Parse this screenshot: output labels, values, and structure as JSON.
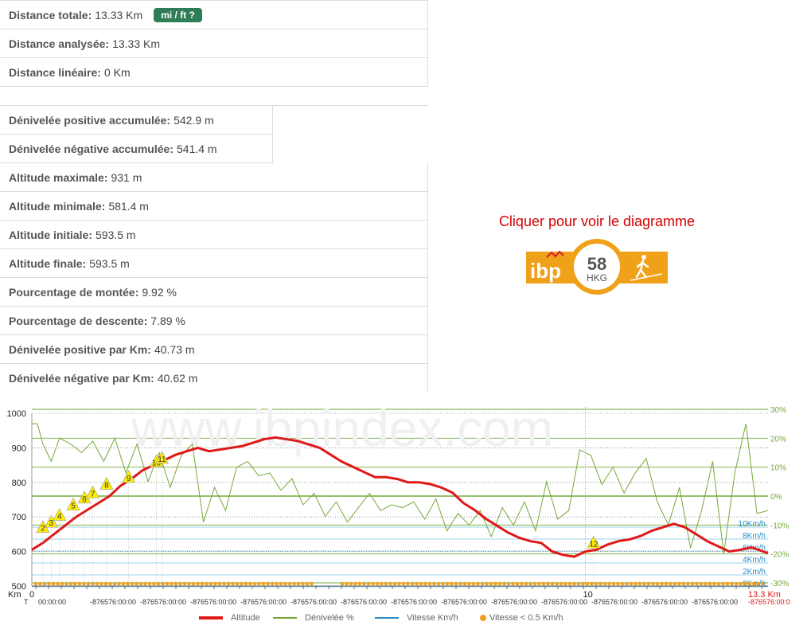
{
  "stats_top": [
    {
      "label": "Distance totale:",
      "value": "13.33 Km",
      "badge": "mi / ft ?"
    },
    {
      "label": "Distance analysée:",
      "value": "13.33 Km"
    },
    {
      "label": "Distance linéaire:",
      "value": "0 Km"
    }
  ],
  "stats_bottom": [
    {
      "label": "Dénivelée positive accumulée:",
      "value": "542.9 m"
    },
    {
      "label": "Dénivelée négative accumulée:",
      "value": "541.4 m"
    },
    {
      "label": "Altitude maximale:",
      "value": "931 m"
    },
    {
      "label": "Altitude minimale:",
      "value": "581.4 m"
    },
    {
      "label": "Altitude initiale:",
      "value": "593.5 m"
    },
    {
      "label": "Altitude finale:",
      "value": "593.5 m"
    },
    {
      "label": "Pourcentage de montée:",
      "value": "9.92 %"
    },
    {
      "label": "Pourcentage de descente:",
      "value": "7.89 %"
    },
    {
      "label": "Dénivelée positive par Km:",
      "value": "40.73 m"
    },
    {
      "label": "Dénivelée négative par Km:",
      "value": "40.62 m"
    }
  ],
  "ibp": {
    "link": "Cliquer pour voir le diagramme",
    "score": "58",
    "code": "HKG",
    "brand": "ibp"
  },
  "watermark": "www.ibpindex.com",
  "colors": {
    "altitude": "#e01818",
    "slope": "#76a83a",
    "speed": "#2a8cc8",
    "stop": "#f0a020",
    "badge": "#2f7d56"
  },
  "chart_data": {
    "type": "line",
    "xlabel": "Km",
    "xlim": [
      0,
      13.3
    ],
    "x_major_ticks": [
      {
        "x": 0,
        "label": "0"
      },
      {
        "x": 10,
        "label": "10"
      }
    ],
    "x_end_label": "13.3 Km",
    "time_start": "00:00:00",
    "time_label": "-876576:00:00",
    "time_end_label": "-876576:00:0",
    "time_marker": "T",
    "y_left": {
      "ylim": [
        500,
        1000
      ],
      "ticks": [
        "1000",
        "900",
        "800",
        "700",
        "600",
        "500"
      ]
    },
    "y_right_slope": {
      "ylim": [
        -30,
        30
      ],
      "ticks": [
        "30%",
        "20%",
        "10%",
        "0%",
        "-10%",
        "-20%",
        "-30%"
      ]
    },
    "speed_ticks": [
      "10Km/h",
      "8Km/h",
      "6Km/h",
      "4Km/h",
      "2Km/h",
      "0Km/h"
    ],
    "legend": [
      "Altitude",
      "Dénivelée %",
      "Vitesse Km/h",
      "Vitesse < 0.5 Km/h"
    ],
    "series": [
      {
        "name": "Altitude",
        "x": [
          0,
          0.2,
          0.4,
          0.6,
          0.8,
          1.0,
          1.2,
          1.4,
          1.6,
          1.8,
          2.0,
          2.2,
          2.4,
          2.6,
          2.8,
          3.0,
          3.2,
          3.4,
          3.6,
          3.8,
          4.0,
          4.2,
          4.4,
          4.6,
          4.8,
          5.0,
          5.2,
          5.4,
          5.6,
          5.8,
          6.0,
          6.2,
          6.4,
          6.6,
          6.8,
          7.0,
          7.2,
          7.4,
          7.6,
          7.8,
          8.0,
          8.2,
          8.4,
          8.6,
          8.8,
          9.0,
          9.2,
          9.4,
          9.6,
          9.8,
          10.0,
          10.2,
          10.4,
          10.6,
          10.8,
          11.0,
          11.2,
          11.4,
          11.6,
          11.8,
          12.0,
          12.2,
          12.4,
          12.6,
          12.8,
          13.0,
          13.3
        ],
        "values": [
          605,
          625,
          650,
          675,
          700,
          720,
          740,
          760,
          790,
          810,
          835,
          850,
          865,
          880,
          890,
          900,
          890,
          895,
          900,
          905,
          915,
          925,
          930,
          925,
          920,
          910,
          900,
          880,
          860,
          845,
          830,
          815,
          815,
          810,
          800,
          800,
          795,
          785,
          770,
          740,
          720,
          695,
          675,
          655,
          640,
          630,
          625,
          600,
          590,
          585,
          600,
          605,
          620,
          630,
          635,
          645,
          660,
          670,
          680,
          670,
          650,
          630,
          615,
          600,
          605,
          612,
          595
        ]
      },
      {
        "name": "Dénivelée %",
        "x": [
          0,
          0.1,
          0.2,
          0.35,
          0.5,
          0.7,
          0.9,
          1.1,
          1.3,
          1.5,
          1.7,
          1.9,
          2.1,
          2.3,
          2.5,
          2.7,
          2.9,
          3.1,
          3.3,
          3.5,
          3.7,
          3.9,
          4.1,
          4.3,
          4.5,
          4.7,
          4.9,
          5.1,
          5.3,
          5.5,
          5.7,
          5.9,
          6.1,
          6.3,
          6.5,
          6.7,
          6.9,
          7.1,
          7.3,
          7.5,
          7.7,
          7.9,
          8.1,
          8.3,
          8.5,
          8.7,
          8.9,
          9.1,
          9.3,
          9.5,
          9.7,
          9.9,
          10.1,
          10.3,
          10.5,
          10.7,
          10.9,
          11.1,
          11.3,
          11.5,
          11.7,
          11.9,
          12.1,
          12.3,
          12.5,
          12.7,
          12.9,
          13.1,
          13.3
        ],
        "values": [
          25,
          25,
          18,
          12,
          20,
          18,
          15,
          19,
          12,
          20,
          8,
          18,
          5,
          15,
          3,
          14,
          18,
          -9,
          3,
          -5,
          10,
          12,
          7,
          8,
          2,
          6,
          -3,
          1,
          -7,
          -2,
          -9,
          -4,
          1,
          -5,
          -3,
          -4,
          -2,
          -8,
          -1,
          -12,
          -6,
          -10,
          -5,
          -14,
          -4,
          -10,
          -2,
          -12,
          5,
          -8,
          -5,
          16,
          14,
          4,
          10,
          1,
          8,
          13,
          -2,
          -10,
          3,
          -18,
          -5,
          12,
          -20,
          8,
          25,
          -6,
          -5
        ]
      }
    ],
    "waypoints": [
      {
        "label": "2",
        "x": 0.2,
        "y": 655
      },
      {
        "label": "3",
        "x": 0.35,
        "y": 670
      },
      {
        "label": "4",
        "x": 0.5,
        "y": 690
      },
      {
        "label": "5",
        "x": 0.75,
        "y": 720
      },
      {
        "label": "6",
        "x": 0.95,
        "y": 740
      },
      {
        "label": "7",
        "x": 1.1,
        "y": 755
      },
      {
        "label": "8",
        "x": 1.35,
        "y": 780
      },
      {
        "label": "9",
        "x": 1.75,
        "y": 800
      },
      {
        "label": "10",
        "x": 2.25,
        "y": 845
      },
      {
        "label": "11",
        "x": 2.35,
        "y": 855
      },
      {
        "label": "12",
        "x": 10.15,
        "y": 610
      }
    ]
  }
}
